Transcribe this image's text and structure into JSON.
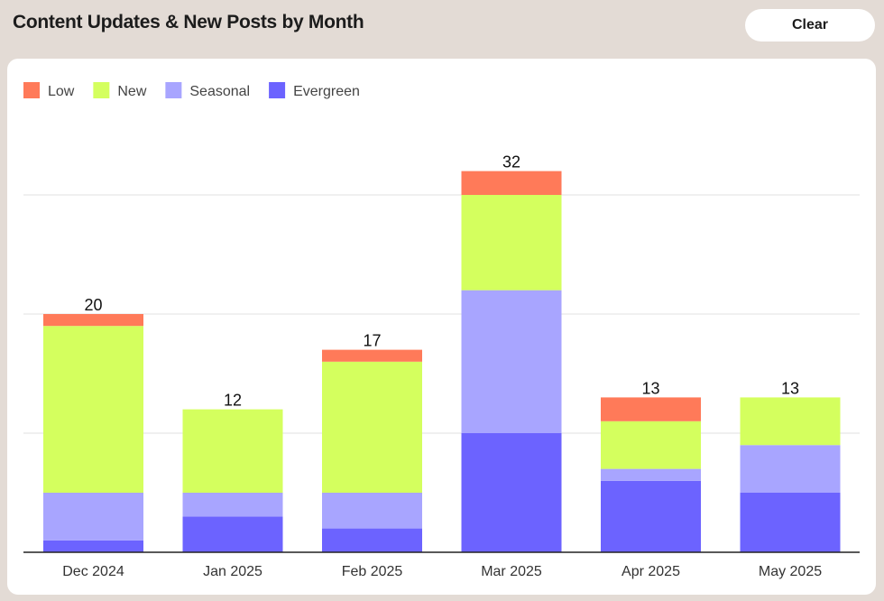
{
  "header": {
    "title": "Content Updates & New Posts by Month",
    "clear_label": "Clear"
  },
  "chart_data": {
    "type": "bar",
    "stacked": true,
    "categories": [
      "Dec 2024",
      "Jan 2025",
      "Feb 2025",
      "Mar 2025",
      "Apr 2025",
      "May 2025"
    ],
    "series": [
      {
        "name": "Evergreen",
        "color": "#6c63ff",
        "values": [
          1,
          3,
          2,
          10,
          6,
          5
        ]
      },
      {
        "name": "Seasonal",
        "color": "#a8a5ff",
        "values": [
          4,
          2,
          3,
          12,
          1,
          4
        ]
      },
      {
        "name": "New",
        "color": "#d4ff5e",
        "values": [
          14,
          7,
          11,
          8,
          4,
          4
        ]
      },
      {
        "name": "Low",
        "color": "#ff7a59",
        "values": [
          1,
          0,
          1,
          2,
          2,
          0
        ]
      }
    ],
    "totals": [
      20,
      12,
      17,
      32,
      13,
      13
    ],
    "legend_order": [
      "Low",
      "New",
      "Seasonal",
      "Evergreen"
    ],
    "legend_position": "top-left",
    "ylim": [
      0,
      32
    ],
    "grid": true,
    "gridlines": [
      10,
      20,
      30
    ]
  }
}
